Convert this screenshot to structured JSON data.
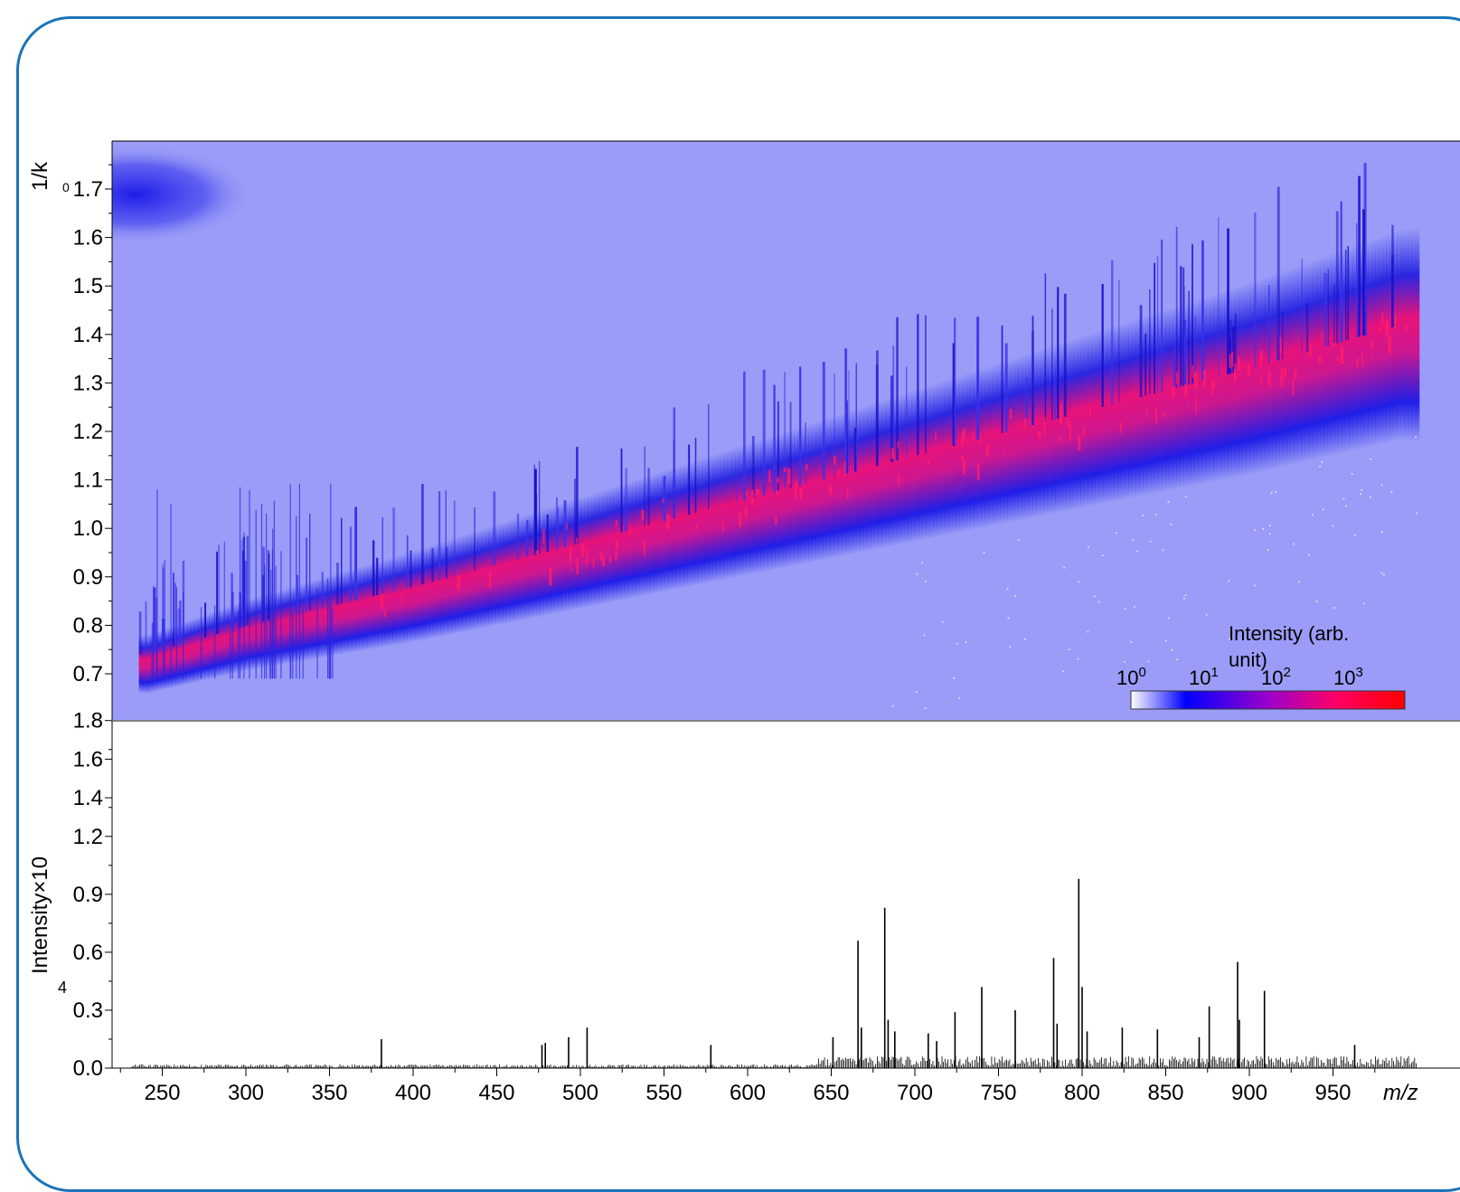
{
  "chart_data": [
    {
      "type": "heatmap",
      "ylabel": "1/k",
      "ylabel_suffix": "0",
      "ylim": [
        0.62,
        1.8
      ],
      "yticks": [
        {
          "v": 0.7,
          "label": "0.7"
        },
        {
          "v": 0.8,
          "label": "0.8"
        },
        {
          "v": 0.9,
          "label": "0.9"
        },
        {
          "v": 1.0,
          "label": "1.0"
        },
        {
          "v": 1.1,
          "label": "1.1"
        },
        {
          "v": 1.2,
          "label": "1.2"
        },
        {
          "v": 1.3,
          "label": "1.3"
        },
        {
          "v": 1.4,
          "label": "1.4"
        },
        {
          "v": 1.5,
          "label": "1.5"
        },
        {
          "v": 1.6,
          "label": "1.6"
        },
        {
          "v": 1.7,
          "label": "1.7"
        }
      ],
      "xlim": [
        220,
        990
      ],
      "trend_band": {
        "x": [
          240,
          300,
          400,
          500,
          600,
          700,
          800,
          900,
          990
        ],
        "y_center": [
          0.72,
          0.78,
          0.86,
          0.95,
          1.04,
          1.13,
          1.22,
          1.31,
          1.4
        ]
      },
      "colorbar": {
        "title": "Intensity (arb. unit)",
        "tick_labels": [
          {
            "base": "10",
            "exp": "0"
          },
          {
            "base": "10",
            "exp": "1"
          },
          {
            "base": "10",
            "exp": "2"
          },
          {
            "base": "10",
            "exp": "3"
          }
        ],
        "colors": [
          "#ffffff",
          "#0000ff",
          "#9900cc",
          "#ff0066",
          "#ff0000"
        ]
      },
      "colors": {
        "background": "#9a9cf8",
        "band_low": "#2222ee",
        "band_high": "#ff1a78"
      }
    },
    {
      "type": "bar",
      "ylabel": "Intensity×10",
      "ylabel_suffix": "4",
      "xlabel": "m/z",
      "xlim": [
        220,
        990
      ],
      "ylim": [
        0,
        1.98
      ],
      "xticks": [
        250,
        300,
        350,
        400,
        450,
        500,
        550,
        600,
        650,
        700,
        750,
        800,
        850,
        900,
        950
      ],
      "yticks": [
        {
          "v": 0.0,
          "label": "0.0"
        },
        {
          "v": 0.3,
          "label": "0.3"
        },
        {
          "v": 0.6,
          "label": "0.6"
        },
        {
          "v": 0.9,
          "label": "0.9"
        },
        {
          "v": 1.2,
          "label": "1.2"
        },
        {
          "v": 1.4,
          "label": "1.4"
        },
        {
          "v": 1.6,
          "label": "1.6"
        },
        {
          "v": 1.8,
          "label": "1.8"
        }
      ],
      "peaks": [
        {
          "x": 381,
          "y": 0.15
        },
        {
          "x": 477,
          "y": 0.12
        },
        {
          "x": 479,
          "y": 0.13
        },
        {
          "x": 493,
          "y": 0.16
        },
        {
          "x": 504,
          "y": 0.21
        },
        {
          "x": 578,
          "y": 0.12
        },
        {
          "x": 651,
          "y": 0.16
        },
        {
          "x": 666,
          "y": 0.66
        },
        {
          "x": 668,
          "y": 0.21
        },
        {
          "x": 682,
          "y": 0.83
        },
        {
          "x": 684,
          "y": 0.25
        },
        {
          "x": 688,
          "y": 0.19
        },
        {
          "x": 708,
          "y": 0.18
        },
        {
          "x": 713,
          "y": 0.14
        },
        {
          "x": 724,
          "y": 0.29
        },
        {
          "x": 740,
          "y": 0.42
        },
        {
          "x": 760,
          "y": 0.3
        },
        {
          "x": 783,
          "y": 0.57
        },
        {
          "x": 785,
          "y": 0.23
        },
        {
          "x": 798,
          "y": 0.98
        },
        {
          "x": 800,
          "y": 0.42
        },
        {
          "x": 803,
          "y": 0.19
        },
        {
          "x": 824,
          "y": 0.21
        },
        {
          "x": 845,
          "y": 0.2
        },
        {
          "x": 870,
          "y": 0.16
        },
        {
          "x": 876,
          "y": 0.32
        },
        {
          "x": 893,
          "y": 0.55
        },
        {
          "x": 894,
          "y": 0.25
        },
        {
          "x": 909,
          "y": 0.4
        },
        {
          "x": 963,
          "y": 0.12
        }
      ]
    }
  ]
}
